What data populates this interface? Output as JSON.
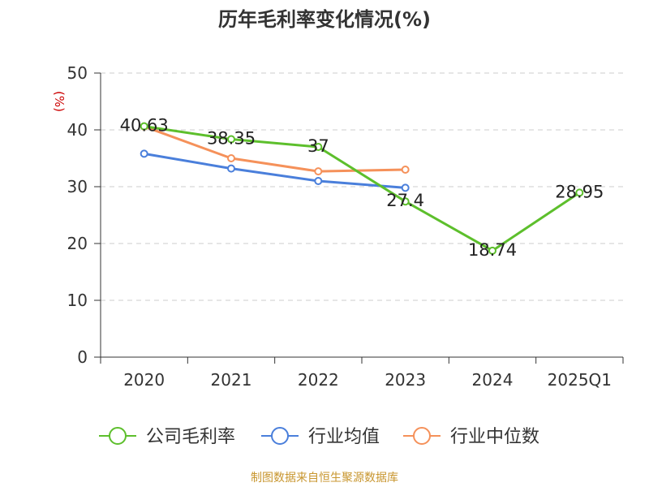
{
  "chart_data": {
    "type": "line",
    "title": "历年毛利率变化情况(%)",
    "ylabel": "(%)",
    "categories": [
      "2020",
      "2021",
      "2022",
      "2023",
      "2024",
      "2025Q1"
    ],
    "ylim": [
      0,
      50
    ],
    "yticks": [
      0,
      10,
      20,
      30,
      40,
      50
    ],
    "grid": true,
    "legend_position": "bottom",
    "series": [
      {
        "name": "公司毛利率",
        "color": "#5dbf2c",
        "values": [
          40.63,
          38.35,
          37,
          27.4,
          18.74,
          28.95
        ],
        "labels": [
          "40.63",
          "38.35",
          "37",
          "27.4",
          "18.74",
          "28.95"
        ]
      },
      {
        "name": "行业均值",
        "color": "#4a7fdb",
        "values": [
          35.8,
          33.2,
          31.0,
          29.8,
          null,
          null
        ]
      },
      {
        "name": "行业中位数",
        "color": "#f5915a",
        "values": [
          40.6,
          35.0,
          32.7,
          33.0,
          null,
          null
        ]
      }
    ]
  },
  "source": "制图数据来自恒生聚源数据库"
}
